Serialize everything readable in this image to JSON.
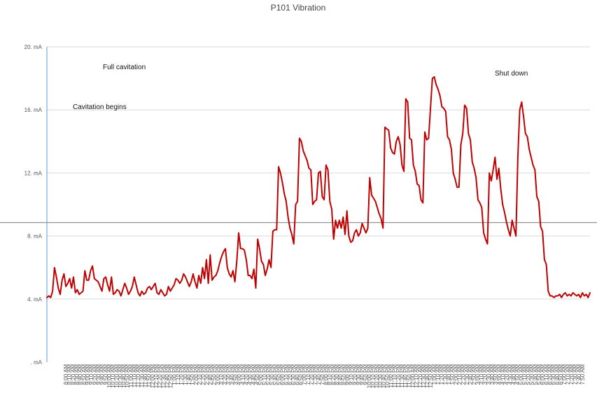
{
  "chart_data": {
    "type": "line",
    "title": "P101 Vibration",
    "xlabel": "",
    "ylabel": "",
    "ylim": [
      0,
      20
    ],
    "yticks": [
      0,
      4,
      8,
      12,
      16,
      20
    ],
    "ytick_labels": [
      ". mA",
      "4. mA",
      "8. mA",
      "12. mA",
      "16. mA",
      "20. mA"
    ],
    "grid": true,
    "reference_line": 8.85,
    "series": [
      {
        "color": "#c00000",
        "values": [
          4.1,
          4.2,
          4.1,
          4.5,
          6.0,
          5.4,
          4.7,
          4.3,
          5.2,
          5.6,
          4.8,
          5.0,
          5.3,
          4.7,
          5.4,
          4.4,
          4.6,
          4.3,
          4.4,
          4.5,
          5.8,
          5.2,
          5.2,
          5.8,
          6.1,
          5.3,
          5.2,
          5.1,
          4.8,
          4.5,
          5.3,
          5.4,
          4.9,
          4.5,
          5.4,
          4.3,
          4.4,
          4.6,
          4.5,
          4.2,
          4.6,
          5.0,
          4.7,
          4.3,
          4.5,
          4.8,
          5.4,
          4.9,
          4.4,
          4.2,
          4.5,
          4.3,
          4.4,
          4.7,
          4.8,
          4.6,
          4.8,
          5.0,
          4.4,
          4.3,
          4.6,
          4.4,
          4.2,
          4.3,
          4.8,
          4.5,
          4.7,
          4.9,
          5.3,
          5.2,
          5.0,
          5.2,
          5.6,
          5.4,
          5.1,
          4.8,
          5.1,
          5.6,
          5.1,
          4.7,
          5.5,
          5.0,
          6.0,
          5.3,
          6.5,
          5.0,
          6.8,
          5.2,
          5.4,
          5.5,
          5.8,
          6.3,
          6.7,
          7.0,
          7.2,
          6.0,
          5.6,
          5.4,
          5.8,
          5.1,
          6.4,
          8.2,
          7.2,
          7.2,
          7.1,
          6.5,
          5.5,
          5.5,
          5.3,
          5.9,
          4.7,
          7.8,
          7.2,
          6.4,
          6.2,
          5.5,
          5.9,
          6.5,
          6.0,
          8.3,
          8.4,
          8.4,
          12.4,
          12.0,
          11.4,
          10.7,
          10.2,
          9.2,
          8.5,
          8.1,
          7.5,
          10.0,
          10.2,
          14.2,
          14.0,
          13.4,
          13.1,
          12.8,
          12.3,
          12.2,
          10.0,
          10.2,
          10.3,
          12.0,
          12.1,
          10.5,
          10.3,
          12.5,
          12.2,
          10.2,
          9.7,
          7.8,
          9.0,
          8.5,
          9.0,
          8.5,
          9.2,
          8.1,
          9.6,
          8.0,
          7.6,
          7.7,
          8.2,
          8.4,
          8.0,
          8.2,
          8.8,
          8.5,
          8.2,
          8.5,
          11.7,
          10.6,
          10.4,
          10.2,
          9.8,
          9.4,
          9.1,
          8.5,
          14.9,
          14.8,
          14.7,
          13.6,
          13.3,
          13.2,
          14.0,
          14.3,
          13.8,
          12.5,
          12.1,
          16.7,
          16.5,
          14.2,
          14.1,
          12.5,
          12.1,
          11.3,
          11.2,
          10.3,
          10.1,
          14.6,
          14.1,
          14.2,
          16.1,
          18.0,
          18.1,
          17.6,
          17.3,
          16.9,
          16.2,
          16.1,
          15.9,
          14.3,
          14.1,
          13.5,
          12.0,
          11.6,
          11.1,
          11.1,
          13.8,
          14.5,
          16.3,
          16.1,
          14.5,
          14.1,
          12.7,
          12.3,
          11.7,
          10.3,
          10.1,
          9.8,
          8.2,
          7.8,
          7.5,
          12.0,
          11.5,
          12.2,
          13.0,
          11.6,
          12.3,
          11.0,
          10.0,
          9.5,
          8.9,
          8.4,
          8.0,
          9.0,
          8.5,
          8.0,
          13.0,
          16.0,
          16.5,
          15.6,
          14.5,
          14.3,
          13.5,
          13.0,
          12.5,
          12.2,
          10.5,
          10.2,
          8.6,
          8.3,
          6.5,
          6.2,
          4.5,
          4.2,
          4.2,
          4.1,
          4.2,
          4.2,
          4.3,
          4.1,
          4.3,
          4.4,
          4.2,
          4.3,
          4.2,
          4.4,
          4.3,
          4.2,
          4.3,
          4.1,
          4.4,
          4.2,
          4.3,
          4.1,
          4.4
        ]
      }
    ],
    "x_tick_labels": [
      "8:00 AM",
      "8:10 AM",
      "8:20 AM",
      "8:30 AM",
      "8:40 AM",
      "8:50 AM",
      "9:00 AM",
      "9:10 AM",
      "9:20 AM",
      "9:30 AM",
      "9:40 AM",
      "9:50 AM",
      "10:00 AM",
      "10:10 AM",
      "10:20 AM",
      "10:30 AM",
      "10:40 AM",
      "10:50 AM",
      "11:00 AM",
      "11:10 AM",
      "11:20 AM",
      "11:30 AM",
      "11:40 AM",
      "11:50 AM",
      "12:00 PM",
      "12:10 PM",
      "12:20 PM",
      "12:30 PM",
      "12:40 PM",
      "12:50 PM",
      "1:00 PM",
      "1:10 PM",
      "1:20 PM",
      "1:30 PM",
      "1:40 PM",
      "1:50 PM",
      "2:00 PM",
      "2:10 PM",
      "2:20 PM",
      "2:30 PM",
      "2:40 PM",
      "2:50 PM",
      "3:00 PM",
      "3:10 PM",
      "3:20 PM",
      "3:30 PM",
      "3:40 PM",
      "3:50 PM",
      "4:00 PM",
      "4:10 PM",
      "4:20 PM",
      "4:30 PM",
      "4:40 PM",
      "4:50 PM",
      "5:00 PM",
      "5:10 PM",
      "5:20 PM",
      "5:30 PM",
      "5:40 PM",
      "5:50 PM",
      "6:00 PM",
      "6:10 PM",
      "6:20 PM",
      "6:30 PM",
      "6:40 PM",
      "6:50 PM",
      "7:00 PM",
      "7:10 PM",
      "7:20 PM",
      "7:30 PM",
      "7:40 PM",
      "7:50 PM",
      "8:00 PM",
      "8:10 PM",
      "8:20 PM",
      "8:30 PM",
      "8:40 PM",
      "8:50 PM",
      "9:00 PM",
      "9:10 PM",
      "9:20 PM",
      "9:30 PM",
      "9:40 PM",
      "9:50 PM",
      "10:00 PM",
      "10:10 PM",
      "10:20 PM",
      "10:30 PM",
      "10:40 PM",
      "10:50 PM",
      "11:00 PM",
      "11:10 PM",
      "11:20 PM",
      "11:30 PM",
      "11:40 PM",
      "11:50 PM",
      "12:00 AM",
      "12:10 AM",
      "12:20 AM",
      "12:30 AM",
      "12:40 AM",
      "12:50 AM",
      "1:00 AM",
      "1:10 AM",
      "1:20 AM",
      "1:30 AM",
      "1:40 AM",
      "1:50 AM",
      "2:00 AM",
      "2:10 AM",
      "2:20 AM",
      "2:30 AM",
      "2:40 AM",
      "2:50 AM",
      "3:00 AM",
      "3:10 AM",
      "3:20 AM",
      "3:30 AM",
      "3:40 AM",
      "3:50 AM",
      "4:00 AM",
      "4:10 AM",
      "4:20 AM",
      "4:30 AM",
      "4:40 AM",
      "4:50 AM",
      "5:00 AM",
      "5:10 AM",
      "5:20 AM",
      "5:30 AM",
      "5:40 AM",
      "5:50 AM",
      "6:00 AM",
      "6:10 AM",
      "6:20 AM",
      "6:30 AM",
      "6:40 AM",
      "6:50 AM",
      "7:00 AM",
      "7:10 AM",
      "7:20 AM",
      "7:30 AM",
      "7:40 AM",
      "7:50 AM"
    ],
    "annotations": [
      {
        "name": "full-cavitation-annotation",
        "text": "Full cavitation"
      },
      {
        "name": "cavitation-begins-annotation",
        "text": "Cavitation begins"
      },
      {
        "name": "shut-down-annotation",
        "text": "Shut down"
      }
    ]
  }
}
